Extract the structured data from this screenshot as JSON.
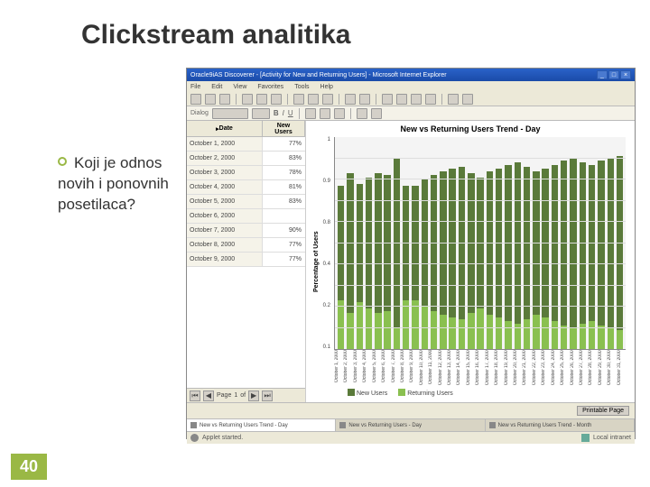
{
  "slide": {
    "title": "Clickstream analitika",
    "bullet": "Koji je odnos novih i ponovnih posetilaca?",
    "number": "40"
  },
  "window": {
    "title": "Oracle9iAS Discoverer - [Activity for New and Returning Users] - Microsoft Internet Explorer",
    "menu": [
      "File",
      "Edit",
      "View",
      "Favorites",
      "Tools",
      "Help"
    ],
    "toolbar2_label": "Dialog",
    "status_left": "Applet started.",
    "status_right": "Local intranet",
    "printable_btn": "Printable Page",
    "tabs": [
      "New vs Returning Users Trend - Day",
      "New vs Returning Users - Day",
      "New vs Returning Users Trend - Month"
    ],
    "pager": {
      "page_label": "Page",
      "of": "of",
      "page": "1"
    }
  },
  "table": {
    "date_header": "Date",
    "value_header_l1": "New",
    "value_header_l2": "Users",
    "rows": [
      {
        "date": "October 1, 2000",
        "val": "77%"
      },
      {
        "date": "October 2, 2000",
        "val": "83%"
      },
      {
        "date": "October 3, 2000",
        "val": "78%"
      },
      {
        "date": "October 4, 2000",
        "val": "81%"
      },
      {
        "date": "October 5, 2000",
        "val": "83%"
      },
      {
        "date": "October 6, 2000",
        "val": ""
      },
      {
        "date": "October 7, 2000",
        "val": "90%"
      },
      {
        "date": "October 8, 2000",
        "val": "77%"
      },
      {
        "date": "October 9, 2000",
        "val": "77%"
      }
    ]
  },
  "chart": {
    "title": "New vs Returning Users Trend - Day",
    "y_label": "Percentage of Users",
    "y_ticks": [
      "1",
      "0.9",
      "0.8",
      "0.4",
      "0.2",
      "0.1"
    ],
    "legend": {
      "new": "New Users",
      "ret": "Returning Users"
    },
    "colors": {
      "new": "#5a7a3a",
      "ret": "#8ac050",
      "grid": "#dddddd",
      "bg": "#f4f4f4"
    },
    "days": [
      {
        "label": "October 1, 2000",
        "new": 77,
        "ret": 23
      },
      {
        "label": "October 2, 2000",
        "new": 83,
        "ret": 17
      },
      {
        "label": "October 3, 2000",
        "new": 78,
        "ret": 22
      },
      {
        "label": "October 4, 2000",
        "new": 81,
        "ret": 19
      },
      {
        "label": "October 5, 2000",
        "new": 83,
        "ret": 17
      },
      {
        "label": "October 6, 2000",
        "new": 82,
        "ret": 18
      },
      {
        "label": "October 7, 2000",
        "new": 90,
        "ret": 10
      },
      {
        "label": "October 8, 2000",
        "new": 77,
        "ret": 23
      },
      {
        "label": "October 9, 2000",
        "new": 77,
        "ret": 23
      },
      {
        "label": "October 10, 2000",
        "new": 80,
        "ret": 20
      },
      {
        "label": "October 11, 2000",
        "new": 82,
        "ret": 18
      },
      {
        "label": "October 12, 2000",
        "new": 84,
        "ret": 16
      },
      {
        "label": "October 13, 2000",
        "new": 85,
        "ret": 15
      },
      {
        "label": "October 14, 2000",
        "new": 86,
        "ret": 14
      },
      {
        "label": "October 15, 2000",
        "new": 83,
        "ret": 17
      },
      {
        "label": "October 16, 2000",
        "new": 81,
        "ret": 19
      },
      {
        "label": "October 17, 2000",
        "new": 84,
        "ret": 16
      },
      {
        "label": "October 18, 2000",
        "new": 85,
        "ret": 15
      },
      {
        "label": "October 19, 2000",
        "new": 87,
        "ret": 13
      },
      {
        "label": "October 20, 2000",
        "new": 88,
        "ret": 12
      },
      {
        "label": "October 21, 2000",
        "new": 86,
        "ret": 14
      },
      {
        "label": "October 22, 2000",
        "new": 84,
        "ret": 16
      },
      {
        "label": "October 23, 2000",
        "new": 85,
        "ret": 15
      },
      {
        "label": "October 24, 2000",
        "new": 87,
        "ret": 13
      },
      {
        "label": "October 25, 2000",
        "new": 89,
        "ret": 11
      },
      {
        "label": "October 26, 2000",
        "new": 90,
        "ret": 10
      },
      {
        "label": "October 27, 2000",
        "new": 88,
        "ret": 12
      },
      {
        "label": "October 28, 2000",
        "new": 87,
        "ret": 13
      },
      {
        "label": "October 29, 2000",
        "new": 89,
        "ret": 11
      },
      {
        "label": "October 30, 2000",
        "new": 90,
        "ret": 10
      },
      {
        "label": "October 31, 2000",
        "new": 91,
        "ret": 9
      }
    ]
  }
}
